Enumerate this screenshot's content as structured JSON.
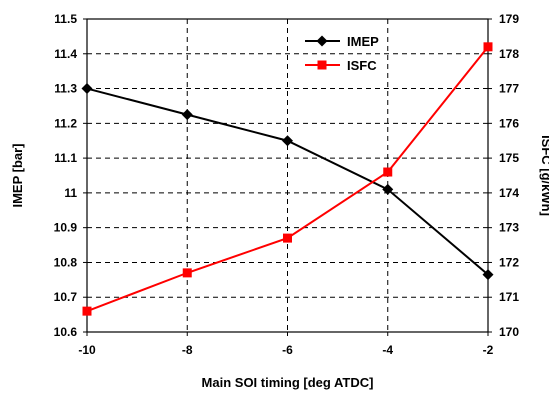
{
  "chart_data": {
    "type": "line",
    "x": [
      -10,
      -8,
      -6,
      -4,
      -2
    ],
    "xlabel": "Main SOI timing [deg ATDC]",
    "xlim": [
      -10,
      -2
    ],
    "xticks": [
      -10,
      -8,
      -6,
      -4,
      -2
    ],
    "ylabel": "IMEP [bar]",
    "ylim": [
      10.6,
      11.5
    ],
    "yticks": [
      "11.5",
      "11.4",
      "11.3",
      "11.2",
      "11.1",
      "11",
      "10.9",
      "10.8",
      "10.7",
      "10.6"
    ],
    "y2label": "ISFC [g/kWh]",
    "y2lim": [
      170,
      179
    ],
    "y2ticks": [
      "179",
      "178",
      "177",
      "176",
      "175",
      "174",
      "173",
      "172",
      "171",
      "170"
    ],
    "grid": true,
    "legend_position": "top-right",
    "series": [
      {
        "name": "IMEP",
        "axis": "left",
        "color": "#000000",
        "marker": "diamond",
        "values": [
          11.3,
          11.225,
          11.15,
          11.01,
          10.765
        ]
      },
      {
        "name": "ISFC",
        "axis": "right",
        "color": "#ff0000",
        "marker": "square",
        "values": [
          170.6,
          171.7,
          172.7,
          174.6,
          178.2
        ]
      }
    ]
  }
}
